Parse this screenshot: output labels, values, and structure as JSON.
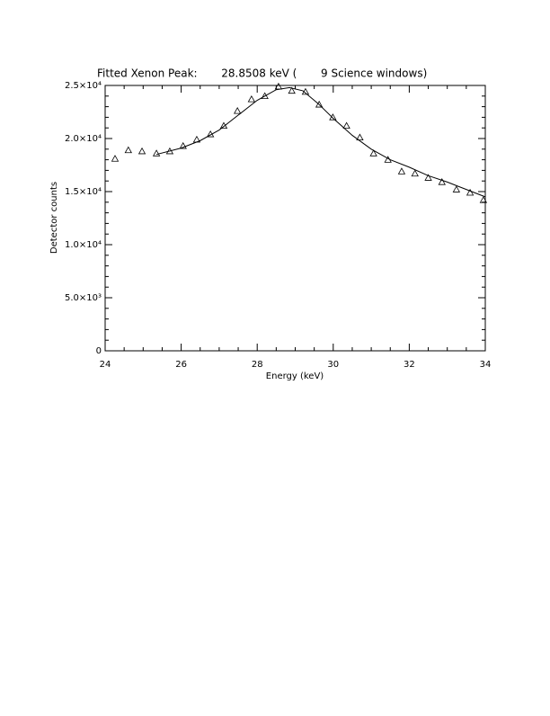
{
  "chart_data": {
    "type": "scatter",
    "title": "Fitted Xenon Peak:       28.8508 keV (       9 Science windows)",
    "x_label": "Energy (keV)",
    "y_label": "Detector counts",
    "xlim": [
      24,
      34
    ],
    "ylim": [
      0,
      25000
    ],
    "xticks": [
      24,
      26,
      28,
      30,
      32,
      34
    ],
    "yticks": [
      0,
      {
        "value": 5000,
        "label": "5.0×10³"
      },
      {
        "value": 10000,
        "label": "1.0×10⁴"
      },
      {
        "value": 15000,
        "label": "1.5×10⁴"
      },
      {
        "value": 20000,
        "label": "2.0×10⁴"
      },
      {
        "value": 25000,
        "label": "2.5×10⁴"
      }
    ],
    "xminor": 4,
    "yminor": 5,
    "series": [
      {
        "type": "scatter",
        "marker": "triangle",
        "color": "#000000",
        "x": [
          24.26,
          24.61,
          24.97,
          25.35,
          25.7,
          26.05,
          26.41,
          26.77,
          27.12,
          27.48,
          27.85,
          28.2,
          28.56,
          28.91,
          29.27,
          29.63,
          29.99,
          30.35,
          30.7,
          31.06,
          31.44,
          31.8,
          32.15,
          32.5,
          32.86,
          33.24,
          33.6,
          33.95
        ],
        "values": [
          18100,
          18900,
          18800,
          18600,
          18800,
          19300,
          19900,
          20400,
          21200,
          22600,
          23700,
          24000,
          24900,
          24500,
          24400,
          23200,
          22000,
          21200,
          20100,
          18600,
          18000,
          16900,
          16700,
          16300,
          15900,
          15200,
          14900,
          14200
        ]
      },
      {
        "type": "line",
        "color": "#000000",
        "x": [
          25.35,
          26,
          26.5,
          27,
          27.5,
          28,
          28.5,
          28.85,
          29.2,
          29.6,
          30,
          30.5,
          31,
          31.5,
          32,
          32.5,
          33,
          33.5,
          34
        ],
        "values": [
          18500,
          19100,
          19800,
          20800,
          22200,
          23600,
          24600,
          24800,
          24500,
          23300,
          21900,
          20300,
          19000,
          18000,
          17300,
          16500,
          15900,
          15200,
          14500
        ]
      }
    ]
  }
}
